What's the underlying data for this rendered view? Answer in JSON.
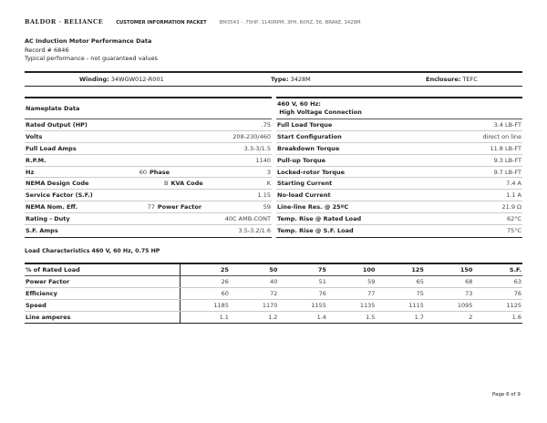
{
  "header": {
    "logo": "BALDOR · RELIANCE",
    "packet": "CUSTOMER INFORMATION PACKET",
    "description": "BM3543 - .75HP, 1140RPM, 3PH, 60HZ, 56, BRAKE, 3428M"
  },
  "title": "AC Induction Motor Performance Data",
  "record": "Record # 6846",
  "note": "Typical performance - not guaranteed values",
  "winding": {
    "winding_label": "Winding:",
    "winding": "34WGW012-R001",
    "type_label": "Type:",
    "type": "3428M",
    "enclosure_label": "Enclosure:",
    "enclosure": "TEFC"
  },
  "nameplate": {
    "title": "Nameplate Data",
    "rows": [
      {
        "label": "Rated Output (HP)",
        "value": ".75"
      },
      {
        "label": "Volts",
        "value": "208-230/460"
      },
      {
        "label": "Full Load Amps",
        "value": "3.3-3/1.5"
      },
      {
        "label": "R.P.M.",
        "value": "1140"
      },
      {
        "label": "Hz",
        "value": "60",
        "label2": "Phase",
        "value2": "3"
      },
      {
        "label": "NEMA Design Code",
        "value": "B",
        "label2": "KVA Code",
        "value2": "K"
      },
      {
        "label": "Service Factor (S.F.)",
        "value": "1.15"
      },
      {
        "label": "NEMA Nom. Eff.",
        "value": "77",
        "label2": "Power Factor",
        "value2": "59"
      },
      {
        "label": "Rating - Duty",
        "value": "40C AMB-CONT"
      },
      {
        "label": "S.F. Amps",
        "value": "3.5-3.2/1.6"
      }
    ]
  },
  "connection": {
    "title1": "460 V, 60 Hz:",
    "title2": "High Voltage Connection",
    "rows": [
      {
        "label": "Full Load Torque",
        "value": "3.4 LB-FT"
      },
      {
        "label": "Start Configuration",
        "value": "direct on line"
      },
      {
        "label": "Breakdown Torque",
        "value": "11.8 LB-FT"
      },
      {
        "label": "Pull-up Torque",
        "value": "9.3 LB-FT"
      },
      {
        "label": "Locked-rotor Torque",
        "value": "9.7 LB-FT"
      },
      {
        "label": "Starting Current",
        "value": "7.4 A"
      },
      {
        "label": "No-load Current",
        "value": "1.1 A"
      },
      {
        "label": "Line-line Res. @ 25ºC",
        "value": "21.9 Ω"
      },
      {
        "label": "Temp. Rise @ Rated Load",
        "value": "62°C"
      },
      {
        "label": "Temp. Rise @ S.F. Load",
        "value": "75°C"
      }
    ]
  },
  "load": {
    "title": "Load Characteristics 460 V, 60 Hz, 0.75 HP",
    "header": [
      "% of Rated Load",
      "25",
      "50",
      "75",
      "100",
      "125",
      "150",
      "S.F."
    ],
    "rows": [
      [
        "Power Factor",
        "26",
        "40",
        "51",
        "59",
        "65",
        "68",
        "63"
      ],
      [
        "Efficiency",
        "60",
        "72",
        "76",
        "77",
        "75",
        "73",
        "76"
      ],
      [
        "Speed",
        "1185",
        "1170",
        "1155",
        "1135",
        "1115",
        "1095",
        "1125"
      ],
      [
        "Line amperes",
        "1.1",
        "1.2",
        "1.4",
        "1.5",
        "1.7",
        "2",
        "1.6"
      ]
    ]
  },
  "footer": {
    "page": "Page 6 of 9"
  }
}
